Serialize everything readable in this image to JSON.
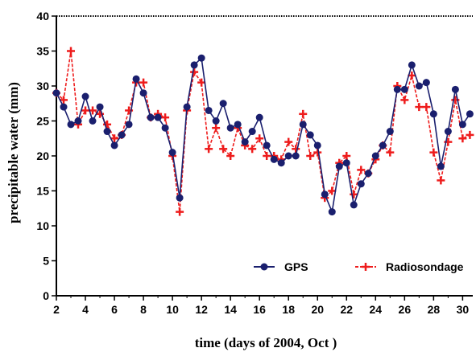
{
  "chart_data": {
    "type": "line",
    "title": "",
    "xlabel": "time (days of 2004, Oct )",
    "ylabel": "precipitable water (mm)",
    "xlim": [
      2,
      30.7
    ],
    "ylim": [
      0,
      40
    ],
    "xticks": [
      2,
      4,
      6,
      8,
      10,
      12,
      14,
      16,
      18,
      20,
      22,
      24,
      26,
      28,
      30
    ],
    "yticks": [
      0,
      5,
      10,
      15,
      20,
      25,
      30,
      35,
      40
    ],
    "legend_position": "bottom-right",
    "series": [
      {
        "name": "GPS",
        "color": "#1a1f6e",
        "marker": "circle",
        "line": "solid",
        "x": [
          2.0,
          2.5,
          3.0,
          3.5,
          4.0,
          4.5,
          5.0,
          5.5,
          6.0,
          6.5,
          7.0,
          7.5,
          8.0,
          8.5,
          9.0,
          9.5,
          10.0,
          10.5,
          11.0,
          11.5,
          12.0,
          12.5,
          13.0,
          13.5,
          14.0,
          14.5,
          15.0,
          15.5,
          16.0,
          16.5,
          17.0,
          17.5,
          18.0,
          18.5,
          19.0,
          19.5,
          20.0,
          20.5,
          21.0,
          21.5,
          22.0,
          22.5,
          23.0,
          23.5,
          24.0,
          24.5,
          25.0,
          25.5,
          26.0,
          26.5,
          27.0,
          27.5,
          28.0,
          28.5,
          29.0,
          29.5,
          30.0,
          30.5
        ],
        "y": [
          29,
          27,
          24.5,
          25,
          28.5,
          25,
          27,
          23.5,
          21.5,
          23,
          24.5,
          31,
          29,
          25.5,
          25.5,
          24,
          20.5,
          14,
          27,
          33,
          34,
          26.5,
          25,
          27.5,
          24,
          24.5,
          22,
          23.5,
          25.5,
          21.5,
          19.5,
          19,
          20,
          20,
          24.5,
          23,
          21.5,
          14.5,
          12,
          18.5,
          19,
          13,
          16,
          17.5,
          20,
          21.5,
          23.5,
          29.5,
          29.5,
          33,
          30,
          30.5,
          26,
          18.5,
          23.5,
          29.5,
          24.5,
          26
        ]
      },
      {
        "name": "Radiosondage",
        "color": "#ee1c1c",
        "marker": "plus",
        "line": "dashed",
        "x": [
          2.0,
          2.5,
          3.0,
          3.5,
          4.0,
          4.5,
          5.0,
          5.5,
          6.0,
          6.5,
          7.0,
          7.5,
          8.0,
          8.5,
          9.0,
          9.5,
          10.0,
          10.5,
          11.0,
          11.5,
          12.0,
          12.5,
          13.0,
          13.5,
          14.0,
          14.5,
          15.0,
          15.5,
          16.0,
          16.5,
          17.0,
          17.5,
          18.0,
          18.5,
          19.0,
          19.5,
          20.0,
          20.5,
          21.0,
          21.5,
          22.0,
          22.5,
          23.0,
          23.5,
          24.0,
          24.5,
          25.0,
          25.5,
          26.0,
          26.5,
          27.0,
          27.5,
          28.0,
          28.5,
          29.0,
          29.5,
          30.0,
          30.5
        ],
        "y": [
          29,
          28,
          35,
          24.5,
          26.5,
          26.5,
          26,
          24.5,
          22.5,
          23,
          26.5,
          30.5,
          30.5,
          25.5,
          26,
          25.5,
          20,
          12,
          26.5,
          32,
          30.5,
          21,
          24,
          21,
          20,
          24,
          21.5,
          21,
          22.5,
          20,
          20,
          19.5,
          22,
          21,
          26,
          20,
          20.5,
          14,
          15,
          19,
          20,
          14.5,
          18,
          17.5,
          19.5,
          21.5,
          20.5,
          30,
          28,
          31.5,
          27,
          27,
          20.5,
          16.5,
          22,
          28,
          22.5,
          23
        ]
      }
    ]
  }
}
